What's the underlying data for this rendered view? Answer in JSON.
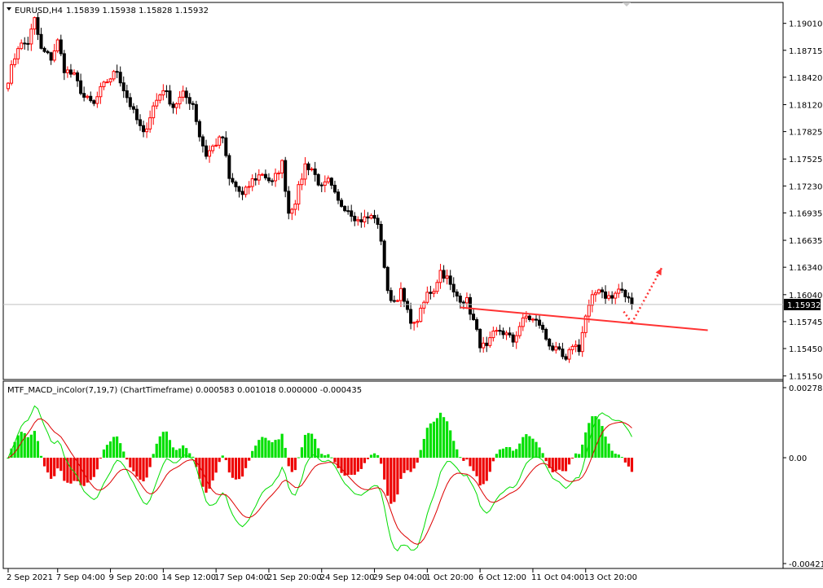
{
  "main_chart": {
    "symbol_label": "EURUSD,H4",
    "ohlc_text": "1.15839 1.15938 1.15828 1.15932",
    "current_price": "1.15932",
    "current_price_value": 1.15932,
    "price_ticks": [
      "1.19010",
      "1.18715",
      "1.18420",
      "1.18120",
      "1.17825",
      "1.17525",
      "1.17230",
      "1.16935",
      "1.16635",
      "1.16340",
      "1.16040",
      "1.15745",
      "1.15450",
      "1.15150"
    ],
    "price_tick_values": [
      1.1901,
      1.18715,
      1.1842,
      1.1812,
      1.17825,
      1.17525,
      1.1723,
      1.16935,
      1.16635,
      1.1634,
      1.1604,
      1.15745,
      1.1545,
      1.1515
    ],
    "price_range": [
      1.1512,
      1.1923
    ],
    "bull_color": "#ff0000",
    "bear_color": "#000000"
  },
  "indicator": {
    "title": "MTF_MACD_inColor(7,19,7) (ChartTimeframe) 0.000583 0.001018 0.000000 -0.000435",
    "ticks": [
      "0.002787",
      "0.00",
      "-0.004211"
    ],
    "tick_values": [
      0.002787,
      0,
      -0.004211
    ],
    "hist_pos_color": "#00e000",
    "hist_neg_color": "#ee0000",
    "macd_line_color": "#00dd00",
    "signal_line_color": "#dd0000"
  },
  "time_axis": {
    "labels": [
      "2 Sep 2021",
      "7 Sep 04:00",
      "9 Sep 20:00",
      "14 Sep 12:00",
      "17 Sep 04:00",
      "21 Sep 20:00",
      "24 Sep 12:00",
      "29 Sep 04:00",
      "1 Oct 20:00",
      "6 Oct 12:00",
      "11 Oct 04:00",
      "13 Oct 20:00"
    ],
    "label_bars": [
      0,
      15,
      31,
      47,
      63,
      79,
      95,
      111,
      127,
      143,
      159,
      175
    ]
  },
  "annotations": {
    "trendline": {
      "from_bar": 137,
      "from_price": 1.159,
      "to_bar": 212,
      "to_price": 1.1565,
      "color": "#ff3333"
    },
    "arrow": {
      "color": "#ff3333",
      "from_bar": 189,
      "from_price": 1.1573,
      "mid_bar": 191,
      "mid_price": 1.1577,
      "to_bar": 198,
      "to_price": 1.1633
    }
  },
  "chart_data": [
    {
      "type": "candlestick",
      "title": "EURUSD,H4",
      "ylim": [
        1.1512,
        1.1923
      ],
      "x": "bar index (4-hour bars from 2 Sep 2021)",
      "close_anchors": [
        [
          0,
          1.184
        ],
        [
          3,
          1.1876
        ],
        [
          6,
          1.188
        ],
        [
          8,
          1.1905
        ],
        [
          10,
          1.1872
        ],
        [
          13,
          1.1863
        ],
        [
          15,
          1.1881
        ],
        [
          17,
          1.1851
        ],
        [
          20,
          1.1843
        ],
        [
          23,
          1.182
        ],
        [
          26,
          1.1812
        ],
        [
          28,
          1.1828
        ],
        [
          30,
          1.1838
        ],
        [
          33,
          1.1849
        ],
        [
          35,
          1.1829
        ],
        [
          38,
          1.1803
        ],
        [
          41,
          1.1779
        ],
        [
          44,
          1.181
        ],
        [
          47,
          1.183
        ],
        [
          50,
          1.181
        ],
        [
          53,
          1.1823
        ],
        [
          56,
          1.1813
        ],
        [
          58,
          1.1778
        ],
        [
          60,
          1.1757
        ],
        [
          63,
          1.177
        ],
        [
          65,
          1.1776
        ],
        [
          67,
          1.173
        ],
        [
          69,
          1.1722
        ],
        [
          71,
          1.1712
        ],
        [
          74,
          1.1729
        ],
        [
          77,
          1.1737
        ],
        [
          80,
          1.1726
        ],
        [
          83,
          1.1748
        ],
        [
          85,
          1.1694
        ],
        [
          87,
          1.1707
        ],
        [
          90,
          1.1746
        ],
        [
          92,
          1.1742
        ],
        [
          95,
          1.172
        ],
        [
          97,
          1.1728
        ],
        [
          100,
          1.1705
        ],
        [
          103,
          1.1698
        ],
        [
          106,
          1.1685
        ],
        [
          109,
          1.1688
        ],
        [
          111,
          1.169
        ],
        [
          113,
          1.1665
        ],
        [
          115,
          1.1605
        ],
        [
          117,
          1.1597
        ],
        [
          119,
          1.1607
        ],
        [
          121,
          1.1584
        ],
        [
          123,
          1.157
        ],
        [
          125,
          1.1585
        ],
        [
          127,
          1.1605
        ],
        [
          129,
          1.161
        ],
        [
          131,
          1.163
        ],
        [
          133,
          1.1622
        ],
        [
          135,
          1.1605
        ],
        [
          137,
          1.16
        ],
        [
          139,
          1.1597
        ],
        [
          141,
          1.1575
        ],
        [
          143,
          1.155
        ],
        [
          145,
          1.1545
        ],
        [
          147,
          1.156
        ],
        [
          149,
          1.1565
        ],
        [
          151,
          1.156
        ],
        [
          153,
          1.1553
        ],
        [
          155,
          1.157
        ],
        [
          157,
          1.158
        ],
        [
          159,
          1.1576
        ],
        [
          161,
          1.1572
        ],
        [
          163,
          1.1556
        ],
        [
          165,
          1.1545
        ],
        [
          167,
          1.154
        ],
        [
          169,
          1.153
        ],
        [
          171,
          1.155
        ],
        [
          173,
          1.1545
        ],
        [
          175,
          1.158
        ],
        [
          177,
          1.16
        ],
        [
          179,
          1.1612
        ],
        [
          181,
          1.1603
        ],
        [
          183,
          1.16
        ],
        [
          185,
          1.161
        ],
        [
          187,
          1.1603
        ],
        [
          189,
          1.15932
        ]
      ]
    },
    {
      "type": "histogram+lines",
      "title": "MTF_MACD_inColor(7,19,7) (ChartTimeframe) 0.000583 0.001018 0.000000 -0.000435",
      "ylim": [
        -0.004211,
        0.002787
      ],
      "last_values": {
        "macd": 0.000583,
        "signal": 0.001018,
        "hist_pos": 0.0,
        "hist_neg": -0.000435
      }
    }
  ]
}
